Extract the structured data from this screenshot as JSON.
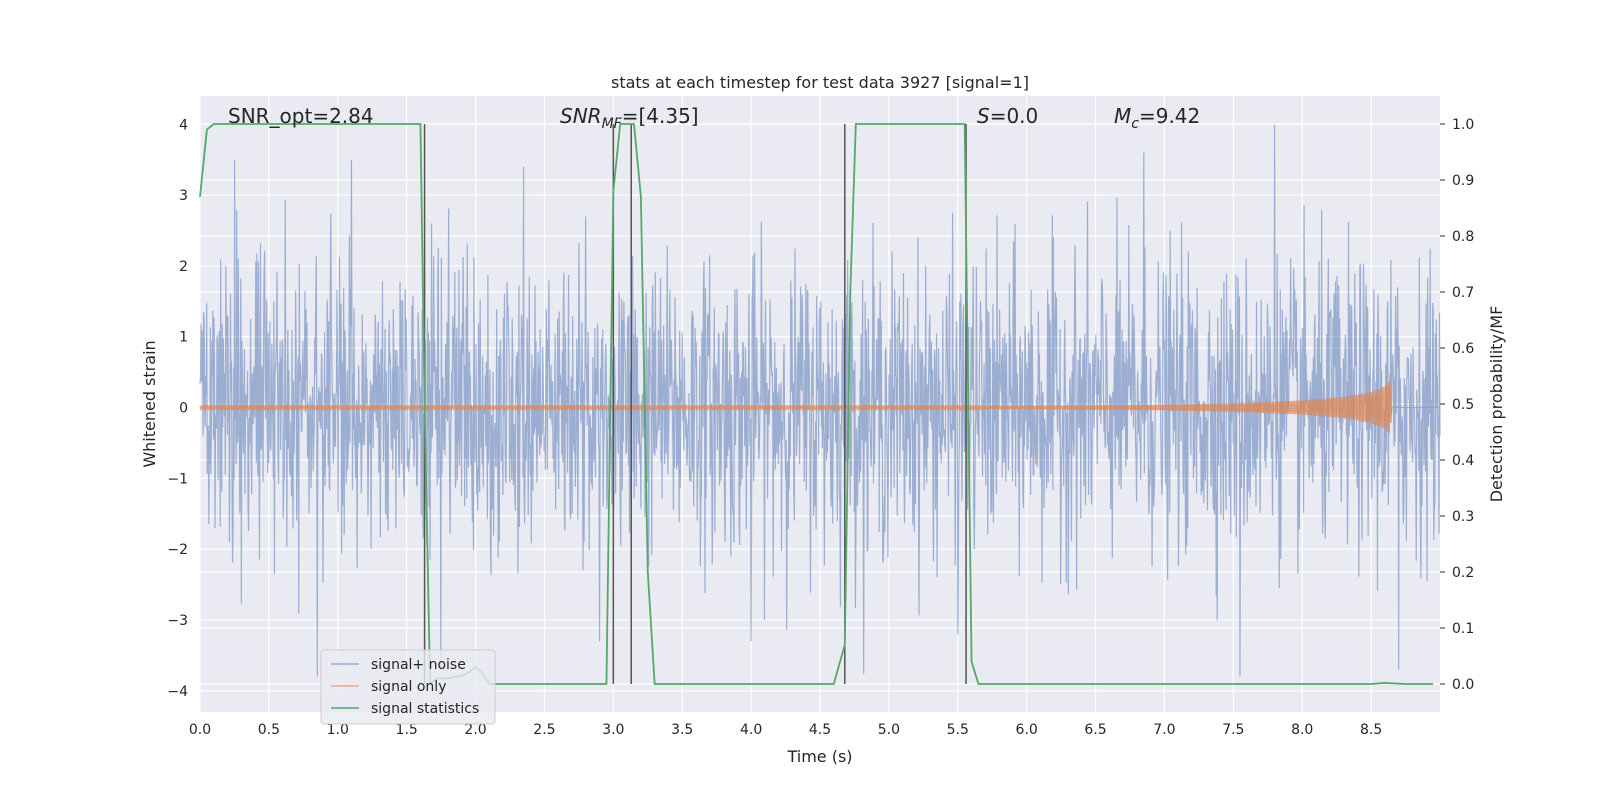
{
  "chart_data": {
    "type": "line",
    "title": "stats at each timestep for test data 3927 [signal=1]",
    "xlabel": "Time (s)",
    "ylabel_left": "Whitened strain",
    "ylabel_right": "Detection probability/MF",
    "xlim": [
      0.0,
      9.0
    ],
    "ylim_left": [
      -4.3,
      4.4
    ],
    "ylim_right": [
      -0.05,
      1.05
    ],
    "grid": true,
    "background": "#eaeaf2",
    "x_ticks": [
      "0.0",
      "0.5",
      "1.0",
      "1.5",
      "2.0",
      "2.5",
      "3.0",
      "3.5",
      "4.0",
      "4.5",
      "5.0",
      "5.5",
      "6.0",
      "6.5",
      "7.0",
      "7.5",
      "8.0",
      "8.5"
    ],
    "y_ticks_left": [
      "−4",
      "−3",
      "−2",
      "−1",
      "0",
      "1",
      "2",
      "3",
      "4"
    ],
    "y_ticks_right": [
      "0.0",
      "0.1",
      "0.2",
      "0.3",
      "0.4",
      "0.5",
      "0.6",
      "0.7",
      "0.8",
      "0.9",
      "1.0"
    ],
    "annotations": {
      "snr_opt": "SNR_opt=2.84",
      "snr_mf_sym": "SNR",
      "snr_mf_sub": "MF",
      "snr_mf_val": "=[4.35]",
      "s_sym": "S",
      "s_val": "=0.0",
      "mc_sym": "M",
      "mc_sub": "c",
      "mc_val": "=9.42"
    },
    "legend": {
      "placement": "lower-left",
      "entries": [
        "signal+ noise",
        "signal only",
        "signal statistics"
      ]
    },
    "colors": {
      "noise": "#4c72b0",
      "signal": "#dd8452",
      "stats": "#55a868",
      "vlines": "#555555"
    },
    "series": [
      {
        "name": "signal statistics",
        "axis": "right",
        "x": [
          0.0,
          0.05,
          0.1,
          0.3,
          0.6,
          1.0,
          1.3,
          1.55,
          1.6,
          1.63,
          1.67,
          1.72,
          1.8,
          1.9,
          1.95,
          2.0,
          2.05,
          2.1,
          2.5,
          2.9,
          2.95,
          3.0,
          3.05,
          3.1,
          3.15,
          3.2,
          3.25,
          3.3,
          3.5,
          4.0,
          4.5,
          4.6,
          4.68,
          4.72,
          4.76,
          4.8,
          5.0,
          5.3,
          5.5,
          5.55,
          5.6,
          5.65,
          5.7,
          6.0,
          7.0,
          8.0,
          8.5,
          8.6,
          8.75,
          8.95
        ],
        "y": [
          0.87,
          0.99,
          1.0,
          1.0,
          1.0,
          1.0,
          1.0,
          1.0,
          1.0,
          0.5,
          0.0,
          0.01,
          0.01,
          0.015,
          0.02,
          0.03,
          0.02,
          0.0,
          0.0,
          0.0,
          0.0,
          0.88,
          1.0,
          1.0,
          1.0,
          0.87,
          0.2,
          0.0,
          0.0,
          0.0,
          0.0,
          0.0,
          0.07,
          0.7,
          1.0,
          1.0,
          1.0,
          1.0,
          1.0,
          1.0,
          0.04,
          0.0,
          0.0,
          0.0,
          0.0,
          0.0,
          0.0,
          0.002,
          0.0,
          0.0
        ]
      },
      {
        "name": "MF markers",
        "axis": "right",
        "vlines_x": [
          1.63,
          3.0,
          3.13,
          4.68,
          5.56
        ]
      },
      {
        "name": "signal only",
        "axis": "left",
        "envelope_x": [
          0.0,
          5.5,
          6.5,
          7.0,
          7.5,
          8.0,
          8.3,
          8.5,
          8.6,
          8.64,
          8.65
        ],
        "envelope_amp": [
          0.02,
          0.02,
          0.03,
          0.04,
          0.06,
          0.1,
          0.15,
          0.22,
          0.3,
          0.38,
          0.0
        ]
      },
      {
        "name": "signal+ noise",
        "axis": "left",
        "description_stats": "dense noise trace",
        "sigma": 1.0,
        "n": 2400,
        "peaks": [
          [
            0.25,
            3.5
          ],
          [
            0.85,
            3.2
          ],
          [
            0.85,
            -3.8
          ],
          [
            1.1,
            3.5
          ],
          [
            1.75,
            3.8
          ],
          [
            1.75,
            -3.7
          ],
          [
            2.35,
            3.4
          ],
          [
            2.9,
            -3.3
          ],
          [
            4.0,
            -3.3
          ],
          [
            5.5,
            3.3
          ],
          [
            5.5,
            -3.2
          ],
          [
            6.85,
            3.6
          ],
          [
            7.8,
            4.0
          ],
          [
            7.55,
            -3.8
          ],
          [
            8.7,
            -3.7
          ]
        ]
      }
    ]
  }
}
